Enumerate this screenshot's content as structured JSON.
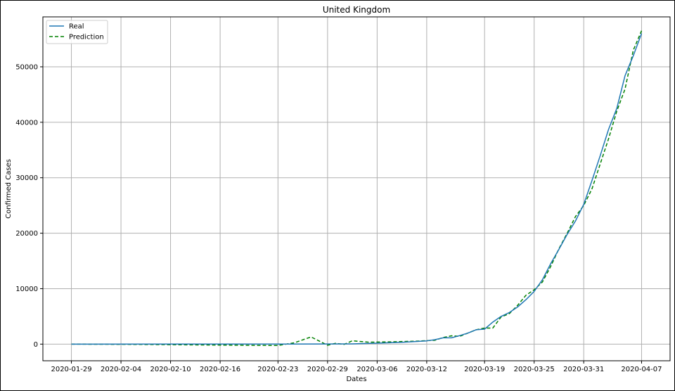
{
  "chart_data": {
    "type": "line",
    "title": "United Kingdom",
    "xlabel": "Dates",
    "ylabel": "Confirmed Cases",
    "grid": true,
    "legend_placement": "top-left",
    "x_range": [
      "2020-01-29",
      "2020-04-07"
    ],
    "ylim": [
      -3000,
      59000
    ],
    "x_ticks": [
      "2020-01-29",
      "2020-02-04",
      "2020-02-10",
      "2020-02-16",
      "2020-02-23",
      "2020-02-29",
      "2020-03-06",
      "2020-03-12",
      "2020-03-19",
      "2020-03-25",
      "2020-03-31",
      "2020-04-07"
    ],
    "y_ticks": [
      0,
      10000,
      20000,
      30000,
      40000,
      50000
    ],
    "series": [
      {
        "name": "Real",
        "color": "#1f77b4",
        "style": "solid",
        "points": [
          [
            "2020-01-29",
            2
          ],
          [
            "2020-02-10",
            8
          ],
          [
            "2020-02-24",
            13
          ],
          [
            "2020-02-29",
            23
          ],
          [
            "2020-03-03",
            51
          ],
          [
            "2020-03-06",
            164
          ],
          [
            "2020-03-09",
            321
          ],
          [
            "2020-03-12",
            590
          ],
          [
            "2020-03-13",
            800
          ],
          [
            "2020-03-14",
            1140
          ],
          [
            "2020-03-15",
            1140
          ],
          [
            "2020-03-16",
            1540
          ],
          [
            "2020-03-17",
            2000
          ],
          [
            "2020-03-18",
            2600
          ],
          [
            "2020-03-19",
            2700
          ],
          [
            "2020-03-20",
            3980
          ],
          [
            "2020-03-21",
            5000
          ],
          [
            "2020-03-22",
            5700
          ],
          [
            "2020-03-23",
            6700
          ],
          [
            "2020-03-24",
            8000
          ],
          [
            "2020-03-25",
            9500
          ],
          [
            "2020-03-26",
            11600
          ],
          [
            "2020-03-27",
            14500
          ],
          [
            "2020-03-28",
            17100
          ],
          [
            "2020-03-29",
            19800
          ],
          [
            "2020-03-30",
            22200
          ],
          [
            "2020-03-31",
            25200
          ],
          [
            "2020-04-01",
            29500
          ],
          [
            "2020-04-02",
            34000
          ],
          [
            "2020-04-03",
            38700
          ],
          [
            "2020-04-04",
            42500
          ],
          [
            "2020-04-05",
            48400
          ],
          [
            "2020-04-06",
            52000
          ],
          [
            "2020-04-07",
            56000
          ]
        ]
      },
      {
        "name": "Prediction",
        "color": "#008000",
        "style": "dashed",
        "points": [
          [
            "2020-01-29",
            0
          ],
          [
            "2020-02-06",
            -50
          ],
          [
            "2020-02-14",
            -150
          ],
          [
            "2020-02-23",
            -250
          ],
          [
            "2020-02-25",
            250
          ],
          [
            "2020-02-27",
            1300
          ],
          [
            "2020-02-29",
            -200
          ],
          [
            "2020-03-01",
            150
          ],
          [
            "2020-03-02",
            -50
          ],
          [
            "2020-03-03",
            600
          ],
          [
            "2020-03-05",
            350
          ],
          [
            "2020-03-08",
            420
          ],
          [
            "2020-03-11",
            550
          ],
          [
            "2020-03-13",
            700
          ],
          [
            "2020-03-14",
            1200
          ],
          [
            "2020-03-15",
            1500
          ],
          [
            "2020-03-16",
            1400
          ],
          [
            "2020-03-17",
            2000
          ],
          [
            "2020-03-18",
            2600
          ],
          [
            "2020-03-19",
            2900
          ],
          [
            "2020-03-20",
            2900
          ],
          [
            "2020-03-21",
            4900
          ],
          [
            "2020-03-22",
            5500
          ],
          [
            "2020-03-23",
            7000
          ],
          [
            "2020-03-24",
            8800
          ],
          [
            "2020-03-25",
            9800
          ],
          [
            "2020-03-26",
            11200
          ],
          [
            "2020-03-27",
            14000
          ],
          [
            "2020-03-28",
            17200
          ],
          [
            "2020-03-29",
            20000
          ],
          [
            "2020-03-30",
            23000
          ],
          [
            "2020-03-31",
            25000
          ],
          [
            "2020-04-01",
            28000
          ],
          [
            "2020-04-02",
            32500
          ],
          [
            "2020-04-03",
            37000
          ],
          [
            "2020-04-04",
            42000
          ],
          [
            "2020-04-05",
            46000
          ],
          [
            "2020-04-06",
            53000
          ],
          [
            "2020-04-07",
            56500
          ]
        ]
      }
    ]
  }
}
